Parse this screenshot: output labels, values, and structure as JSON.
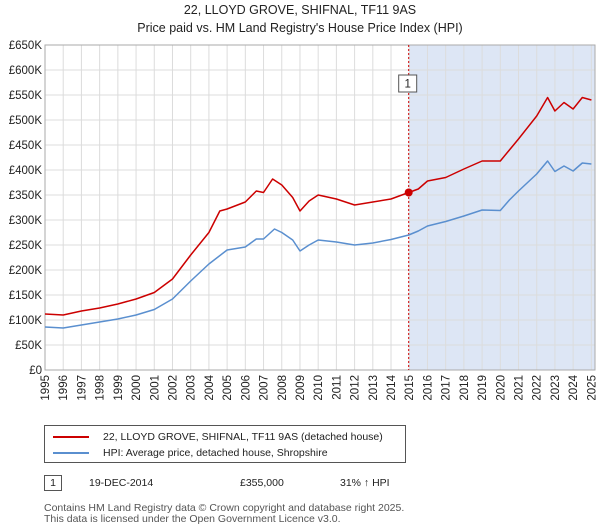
{
  "chart_data": {
    "type": "line",
    "title": "22, LLOYD GROVE, SHIFNAL, TF11 9AS",
    "subtitle": "Price paid vs. HM Land Registry's House Price Index (HPI)",
    "xlabel": "",
    "ylabel": "",
    "xlim": [
      1995,
      2025.2
    ],
    "ylim": [
      0,
      650000
    ],
    "x_ticks": [
      "1995",
      "1996",
      "1997",
      "1998",
      "1999",
      "2000",
      "2001",
      "2002",
      "2003",
      "2004",
      "2005",
      "2006",
      "2007",
      "2008",
      "2009",
      "2010",
      "2011",
      "2012",
      "2013",
      "2014",
      "2015",
      "2016",
      "2017",
      "2018",
      "2019",
      "2020",
      "2021",
      "2022",
      "2023",
      "2024",
      "2025"
    ],
    "y_ticks": [
      {
        "value": 0,
        "label": "£0"
      },
      {
        "value": 50000,
        "label": "£50K"
      },
      {
        "value": 100000,
        "label": "£100K"
      },
      {
        "value": 150000,
        "label": "£150K"
      },
      {
        "value": 200000,
        "label": "£200K"
      },
      {
        "value": 250000,
        "label": "£250K"
      },
      {
        "value": 300000,
        "label": "£300K"
      },
      {
        "value": 350000,
        "label": "£350K"
      },
      {
        "value": 400000,
        "label": "£400K"
      },
      {
        "value": 450000,
        "label": "£450K"
      },
      {
        "value": 500000,
        "label": "£500K"
      },
      {
        "value": 550000,
        "label": "£550K"
      },
      {
        "value": 600000,
        "label": "£600K"
      },
      {
        "value": 650000,
        "label": "£650K"
      }
    ],
    "grid": true,
    "legend_position": "below",
    "series": [
      {
        "name": "22, LLOYD GROVE, SHIFNAL, TF11 9AS (detached house)",
        "color": "#cc0000",
        "points": [
          [
            1995,
            112000
          ],
          [
            1996,
            110000
          ],
          [
            1997,
            118000
          ],
          [
            1998,
            124000
          ],
          [
            1999,
            132000
          ],
          [
            2000,
            142000
          ],
          [
            2001,
            155000
          ],
          [
            2002,
            182000
          ],
          [
            2003,
            230000
          ],
          [
            2004,
            275000
          ],
          [
            2004.6,
            318000
          ],
          [
            2005,
            322000
          ],
          [
            2006,
            336000
          ],
          [
            2006.6,
            358000
          ],
          [
            2007,
            355000
          ],
          [
            2007.5,
            382000
          ],
          [
            2008,
            370000
          ],
          [
            2008.6,
            345000
          ],
          [
            2009,
            318000
          ],
          [
            2009.5,
            338000
          ],
          [
            2010,
            350000
          ],
          [
            2011,
            342000
          ],
          [
            2012,
            330000
          ],
          [
            2013,
            336000
          ],
          [
            2014,
            342000
          ],
          [
            2014.97,
            355000
          ],
          [
            2015.5,
            362000
          ],
          [
            2016,
            378000
          ],
          [
            2017,
            385000
          ],
          [
            2018,
            402000
          ],
          [
            2019,
            418000
          ],
          [
            2020,
            418000
          ],
          [
            2020.5,
            440000
          ],
          [
            2021,
            462000
          ],
          [
            2022,
            508000
          ],
          [
            2022.6,
            545000
          ],
          [
            2023,
            518000
          ],
          [
            2023.5,
            535000
          ],
          [
            2024,
            522000
          ],
          [
            2024.5,
            545000
          ],
          [
            2025,
            540000
          ]
        ]
      },
      {
        "name": "HPI: Average price, detached house, Shropshire",
        "color": "#5a8fcf",
        "points": [
          [
            1995,
            86000
          ],
          [
            1996,
            84000
          ],
          [
            1997,
            90000
          ],
          [
            1998,
            96000
          ],
          [
            1999,
            102000
          ],
          [
            2000,
            110000
          ],
          [
            2001,
            121000
          ],
          [
            2002,
            142000
          ],
          [
            2003,
            178000
          ],
          [
            2004,
            212000
          ],
          [
            2005,
            240000
          ],
          [
            2006,
            246000
          ],
          [
            2006.6,
            262000
          ],
          [
            2007,
            262000
          ],
          [
            2007.6,
            282000
          ],
          [
            2008,
            275000
          ],
          [
            2008.6,
            260000
          ],
          [
            2009,
            238000
          ],
          [
            2009.5,
            250000
          ],
          [
            2010,
            260000
          ],
          [
            2011,
            256000
          ],
          [
            2012,
            250000
          ],
          [
            2013,
            254000
          ],
          [
            2014,
            261000
          ],
          [
            2014.97,
            270000
          ],
          [
            2015.5,
            278000
          ],
          [
            2016,
            288000
          ],
          [
            2017,
            297000
          ],
          [
            2018,
            308000
          ],
          [
            2019,
            320000
          ],
          [
            2020,
            319000
          ],
          [
            2020.5,
            340000
          ],
          [
            2021,
            358000
          ],
          [
            2022,
            392000
          ],
          [
            2022.6,
            418000
          ],
          [
            2023,
            397000
          ],
          [
            2023.5,
            408000
          ],
          [
            2024,
            398000
          ],
          [
            2024.5,
            414000
          ],
          [
            2025,
            412000
          ]
        ]
      }
    ],
    "sale_marker": {
      "x": 2014.97,
      "y": 355000,
      "label": "1"
    },
    "shaded_from": 2014.97
  },
  "legend": {
    "items": [
      {
        "label": "22, LLOYD GROVE, SHIFNAL, TF11 9AS (detached house)",
        "color": "#cc0000"
      },
      {
        "label": "HPI: Average price, detached house, Shropshire",
        "color": "#5a8fcf"
      }
    ]
  },
  "annotation": {
    "number": "1",
    "date": "19-DEC-2014",
    "price": "£355,000",
    "hpi": "31% ↑ HPI"
  },
  "footer": {
    "line1": "Contains HM Land Registry data © Crown copyright and database right 2025.",
    "line2": "This data is licensed under the Open Government Licence v3.0."
  }
}
